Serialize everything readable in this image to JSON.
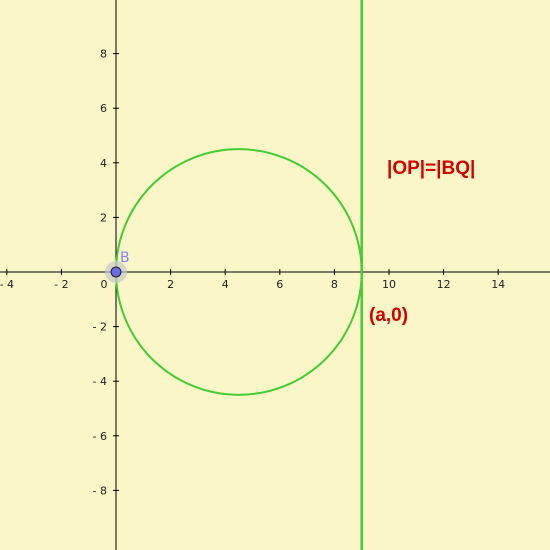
{
  "graph": {
    "background": "#fbf6c8",
    "axis_color": "#000000",
    "curve_color": "#44cc33",
    "annotation_color": "#d40000",
    "point_color": "#6b6bee",
    "x_ticks": [
      -4,
      -2,
      0,
      2,
      4,
      6,
      8,
      10,
      12,
      14
    ],
    "y_ticks": [
      -8,
      -6,
      -4,
      -2,
      2,
      4,
      6,
      8
    ],
    "circle": {
      "cx": 4.5,
      "cy": 0,
      "r": 4.5
    },
    "vertical_line_x": 9,
    "point": {
      "label": "B",
      "x": 0,
      "y": 0
    },
    "annotations": {
      "equation": "|OP|=|BQ|",
      "point_label": "(a,0)"
    }
  }
}
